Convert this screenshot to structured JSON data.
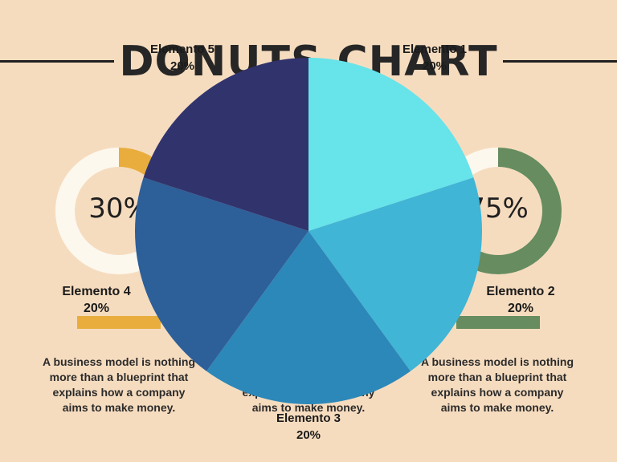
{
  "title": "DONUTS CHART",
  "left_card": {
    "percent": "30%",
    "value": 30,
    "color": "#e8ad3d",
    "track_color": "#fdf8ee",
    "label": "Elemento 4",
    "label_pct": "20%",
    "description": "A business model is nothing more than a blueprint that explains how a company aims to make money."
  },
  "right_card": {
    "percent": "75%",
    "value": 75,
    "color": "#668c5f",
    "track_color": "#fdf8ee",
    "label": "Elemento 2",
    "label_pct": "20%",
    "description": "A business model is nothing more than a blueprint that explains how a company aims to make money."
  },
  "center_card": {
    "description": "A business model is nothing more than a blueprint that explains how a company aims to make money."
  },
  "chart_data": {
    "type": "pie",
    "categories": [
      "Elemento 1",
      "Elemento 2",
      "Elemento 3",
      "Elemento 4",
      "Elemento 5"
    ],
    "values": [
      20,
      20,
      20,
      20,
      20
    ],
    "labels": [
      "20%",
      "20%",
      "20%",
      "20%",
      "20%"
    ],
    "colors": [
      "#67e3ea",
      "#40b5d6",
      "#2c88b9",
      "#2d5f99",
      "#31336d"
    ]
  }
}
